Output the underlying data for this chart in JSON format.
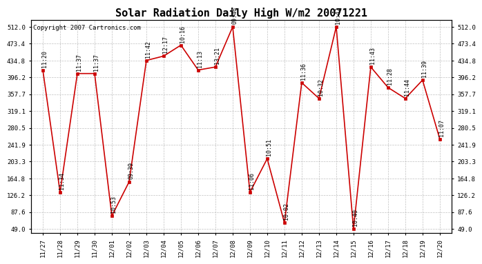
{
  "title": "Solar Radiation Daily High W/m2 20071221",
  "copyright": "Copyright 2007 Cartronics.com",
  "x_labels": [
    "11/27",
    "11/28",
    "11/29",
    "11/30",
    "12/01",
    "12/02",
    "12/03",
    "12/04",
    "12/05",
    "12/06",
    "12/07",
    "12/08",
    "12/09",
    "12/10",
    "12/11",
    "12/12",
    "12/13",
    "12/14",
    "12/15",
    "12/16",
    "12/17",
    "12/18",
    "12/19",
    "12/20"
  ],
  "y_values": [
    413,
    133,
    405,
    405,
    79,
    157,
    435,
    445,
    470,
    413,
    420,
    512,
    133,
    210,
    63,
    384,
    348,
    512,
    49,
    420,
    373,
    348,
    390,
    255
  ],
  "time_labels": [
    "11:20",
    "11:34",
    "11:37",
    "11:37",
    "10:53",
    "09:39",
    "11:42",
    "12:17",
    "10:16",
    "11:13",
    "13:21",
    "09:46",
    "11:06",
    "10:51",
    "10:02",
    "11:36",
    "10:32",
    "10:42",
    "10:40",
    "11:43",
    "11:28",
    "11:44",
    "11:39",
    "11:07"
  ],
  "y_ticks": [
    49.0,
    87.6,
    126.2,
    164.8,
    203.3,
    241.9,
    280.5,
    319.1,
    357.7,
    396.2,
    434.8,
    473.4,
    512.0
  ],
  "y_min": 49.0,
  "y_max": 512.0,
  "line_color": "#cc0000",
  "marker_color": "#cc0000",
  "bg_color": "#ffffff",
  "plot_bg_color": "#ffffff",
  "grid_color": "#b0b0b0",
  "title_fontsize": 11,
  "copyright_fontsize": 6.5,
  "label_fontsize": 6,
  "tick_fontsize": 6.5
}
